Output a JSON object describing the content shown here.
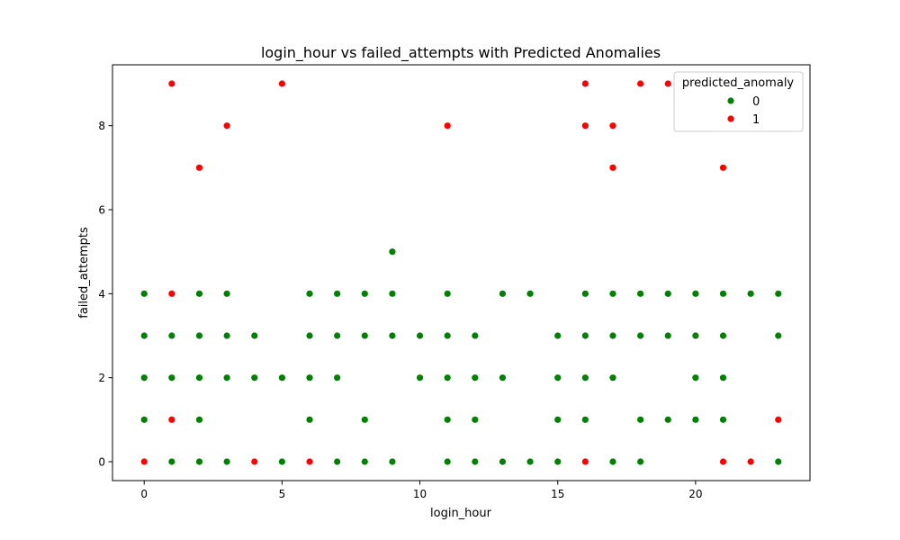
{
  "chart_data": {
    "type": "scatter",
    "title": "login_hour vs failed_attempts with Predicted Anomalies",
    "xlabel": "login_hour",
    "ylabel": "failed_attempts",
    "xlim": [
      -1.15,
      24.15
    ],
    "ylim": [
      -0.45,
      9.45
    ],
    "xticks": [
      0,
      5,
      10,
      15,
      20
    ],
    "yticks": [
      0,
      2,
      4,
      6,
      8
    ],
    "grid": false,
    "legend": {
      "title": "predicted_anomaly",
      "placement": "upper right",
      "entries": [
        {
          "label": "0",
          "color": "#008000"
        },
        {
          "label": "1",
          "color": "#ff0000"
        }
      ]
    },
    "series": [
      {
        "name": "0",
        "color": "#008000",
        "points": [
          [
            0,
            4
          ],
          [
            0,
            3
          ],
          [
            0,
            2
          ],
          [
            0,
            1
          ],
          [
            1,
            3
          ],
          [
            1,
            2
          ],
          [
            1,
            0
          ],
          [
            2,
            4
          ],
          [
            2,
            3
          ],
          [
            2,
            2
          ],
          [
            2,
            1
          ],
          [
            2,
            0
          ],
          [
            3,
            4
          ],
          [
            3,
            3
          ],
          [
            3,
            2
          ],
          [
            3,
            0
          ],
          [
            4,
            3
          ],
          [
            4,
            2
          ],
          [
            5,
            2
          ],
          [
            5,
            0
          ],
          [
            6,
            4
          ],
          [
            6,
            3
          ],
          [
            6,
            2
          ],
          [
            6,
            1
          ],
          [
            7,
            4
          ],
          [
            7,
            3
          ],
          [
            7,
            2
          ],
          [
            7,
            0
          ],
          [
            8,
            4
          ],
          [
            8,
            3
          ],
          [
            8,
            1
          ],
          [
            8,
            0
          ],
          [
            9,
            5
          ],
          [
            9,
            4
          ],
          [
            9,
            3
          ],
          [
            9,
            0
          ],
          [
            10,
            3
          ],
          [
            10,
            2
          ],
          [
            11,
            4
          ],
          [
            11,
            3
          ],
          [
            11,
            2
          ],
          [
            11,
            1
          ],
          [
            11,
            0
          ],
          [
            12,
            3
          ],
          [
            12,
            2
          ],
          [
            12,
            1
          ],
          [
            12,
            0
          ],
          [
            13,
            4
          ],
          [
            13,
            2
          ],
          [
            13,
            0
          ],
          [
            14,
            4
          ],
          [
            14,
            0
          ],
          [
            15,
            3
          ],
          [
            15,
            2
          ],
          [
            15,
            1
          ],
          [
            15,
            0
          ],
          [
            16,
            4
          ],
          [
            16,
            3
          ],
          [
            16,
            2
          ],
          [
            16,
            1
          ],
          [
            17,
            4
          ],
          [
            17,
            3
          ],
          [
            17,
            2
          ],
          [
            17,
            0
          ],
          [
            18,
            4
          ],
          [
            18,
            3
          ],
          [
            18,
            1
          ],
          [
            18,
            0
          ],
          [
            19,
            4
          ],
          [
            19,
            3
          ],
          [
            19,
            1
          ],
          [
            20,
            4
          ],
          [
            20,
            3
          ],
          [
            20,
            2
          ],
          [
            20,
            1
          ],
          [
            21,
            4
          ],
          [
            21,
            3
          ],
          [
            21,
            2
          ],
          [
            21,
            1
          ],
          [
            22,
            4
          ],
          [
            23,
            4
          ],
          [
            23,
            3
          ],
          [
            23,
            0
          ]
        ]
      },
      {
        "name": "1",
        "color": "#ff0000",
        "points": [
          [
            0,
            0
          ],
          [
            1,
            9
          ],
          [
            1,
            4
          ],
          [
            1,
            1
          ],
          [
            2,
            7
          ],
          [
            3,
            8
          ],
          [
            4,
            0
          ],
          [
            5,
            9
          ],
          [
            6,
            0
          ],
          [
            11,
            8
          ],
          [
            16,
            9
          ],
          [
            16,
            8
          ],
          [
            16,
            0
          ],
          [
            17,
            8
          ],
          [
            17,
            7
          ],
          [
            18,
            9
          ],
          [
            19,
            9
          ],
          [
            21,
            7
          ],
          [
            21,
            0
          ],
          [
            22,
            0
          ],
          [
            23,
            1
          ]
        ]
      }
    ]
  }
}
